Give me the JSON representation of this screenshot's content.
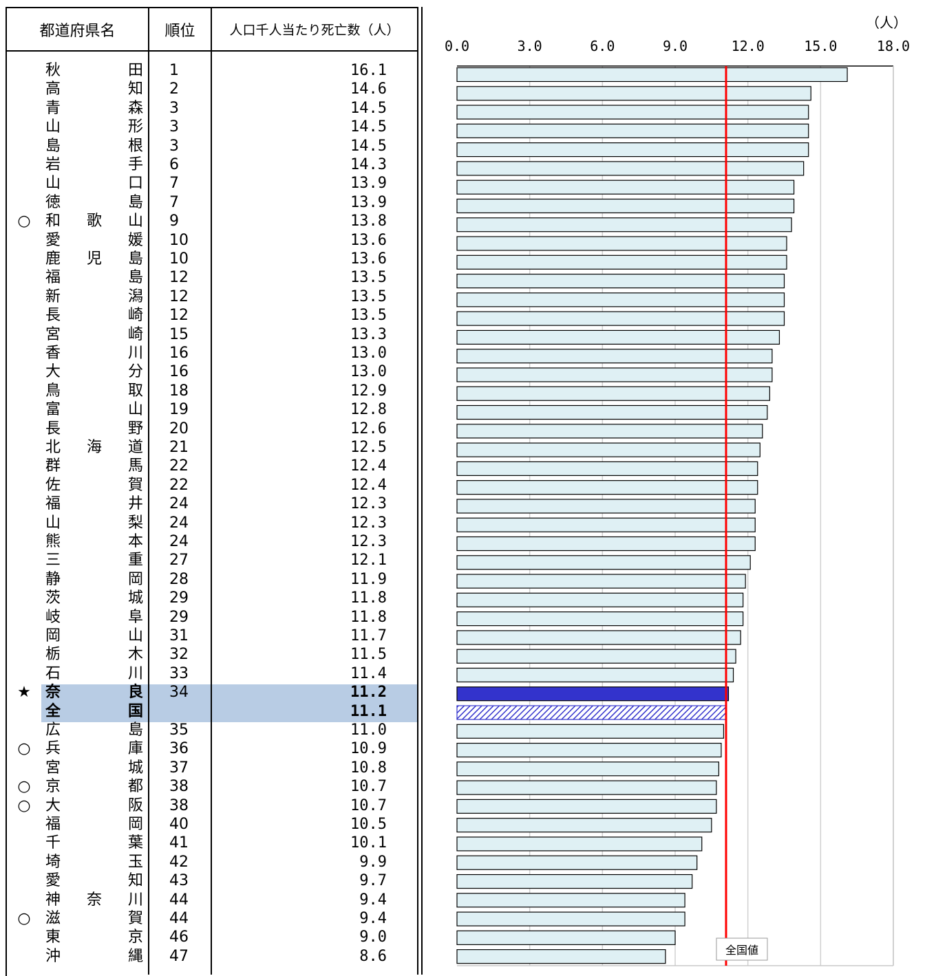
{
  "table": {
    "header": {
      "name": "都道府県名",
      "rank": "順位",
      "value": "人口千人当たり死亡数（人）"
    },
    "rows": [
      {
        "mark": "",
        "c1": "秋",
        "c2": "",
        "c3": "田",
        "rank": "1",
        "value": "16.1"
      },
      {
        "mark": "",
        "c1": "高",
        "c2": "",
        "c3": "知",
        "rank": "2",
        "value": "14.6"
      },
      {
        "mark": "",
        "c1": "青",
        "c2": "",
        "c3": "森",
        "rank": "3",
        "value": "14.5"
      },
      {
        "mark": "",
        "c1": "山",
        "c2": "",
        "c3": "形",
        "rank": "3",
        "value": "14.5"
      },
      {
        "mark": "",
        "c1": "島",
        "c2": "",
        "c3": "根",
        "rank": "3",
        "value": "14.5"
      },
      {
        "mark": "",
        "c1": "岩",
        "c2": "",
        "c3": "手",
        "rank": "6",
        "value": "14.3"
      },
      {
        "mark": "",
        "c1": "山",
        "c2": "",
        "c3": "口",
        "rank": "7",
        "value": "13.9"
      },
      {
        "mark": "",
        "c1": "徳",
        "c2": "",
        "c3": "島",
        "rank": "7",
        "value": "13.9"
      },
      {
        "mark": "○",
        "c1": "和",
        "c2": "歌",
        "c3": "山",
        "rank": "9",
        "value": "13.8"
      },
      {
        "mark": "",
        "c1": "愛",
        "c2": "",
        "c3": "媛",
        "rank": "10",
        "value": "13.6"
      },
      {
        "mark": "",
        "c1": "鹿",
        "c2": "児",
        "c3": "島",
        "rank": "10",
        "value": "13.6"
      },
      {
        "mark": "",
        "c1": "福",
        "c2": "",
        "c3": "島",
        "rank": "12",
        "value": "13.5"
      },
      {
        "mark": "",
        "c1": "新",
        "c2": "",
        "c3": "潟",
        "rank": "12",
        "value": "13.5"
      },
      {
        "mark": "",
        "c1": "長",
        "c2": "",
        "c3": "崎",
        "rank": "12",
        "value": "13.5"
      },
      {
        "mark": "",
        "c1": "宮",
        "c2": "",
        "c3": "崎",
        "rank": "15",
        "value": "13.3"
      },
      {
        "mark": "",
        "c1": "香",
        "c2": "",
        "c3": "川",
        "rank": "16",
        "value": "13.0"
      },
      {
        "mark": "",
        "c1": "大",
        "c2": "",
        "c3": "分",
        "rank": "16",
        "value": "13.0"
      },
      {
        "mark": "",
        "c1": "鳥",
        "c2": "",
        "c3": "取",
        "rank": "18",
        "value": "12.9"
      },
      {
        "mark": "",
        "c1": "富",
        "c2": "",
        "c3": "山",
        "rank": "19",
        "value": "12.8"
      },
      {
        "mark": "",
        "c1": "長",
        "c2": "",
        "c3": "野",
        "rank": "20",
        "value": "12.6"
      },
      {
        "mark": "",
        "c1": "北",
        "c2": "海",
        "c3": "道",
        "rank": "21",
        "value": "12.5"
      },
      {
        "mark": "",
        "c1": "群",
        "c2": "",
        "c3": "馬",
        "rank": "22",
        "value": "12.4"
      },
      {
        "mark": "",
        "c1": "佐",
        "c2": "",
        "c3": "賀",
        "rank": "22",
        "value": "12.4"
      },
      {
        "mark": "",
        "c1": "福",
        "c2": "",
        "c3": "井",
        "rank": "24",
        "value": "12.3"
      },
      {
        "mark": "",
        "c1": "山",
        "c2": "",
        "c3": "梨",
        "rank": "24",
        "value": "12.3"
      },
      {
        "mark": "",
        "c1": "熊",
        "c2": "",
        "c3": "本",
        "rank": "24",
        "value": "12.3"
      },
      {
        "mark": "",
        "c1": "三",
        "c2": "",
        "c3": "重",
        "rank": "27",
        "value": "12.1"
      },
      {
        "mark": "",
        "c1": "静",
        "c2": "",
        "c3": "岡",
        "rank": "28",
        "value": "11.9"
      },
      {
        "mark": "",
        "c1": "茨",
        "c2": "",
        "c3": "城",
        "rank": "29",
        "value": "11.8"
      },
      {
        "mark": "",
        "c1": "岐",
        "c2": "",
        "c3": "阜",
        "rank": "29",
        "value": "11.8"
      },
      {
        "mark": "",
        "c1": "岡",
        "c2": "",
        "c3": "山",
        "rank": "31",
        "value": "11.7"
      },
      {
        "mark": "",
        "c1": "栃",
        "c2": "",
        "c3": "木",
        "rank": "32",
        "value": "11.5"
      },
      {
        "mark": "",
        "c1": "石",
        "c2": "",
        "c3": "川",
        "rank": "33",
        "value": "11.4"
      },
      {
        "mark": "★",
        "c1": "奈",
        "c2": "",
        "c3": "良",
        "rank": "34",
        "value": "11.2",
        "highlight": true,
        "bold": true
      },
      {
        "mark": "",
        "c1": "全",
        "c2": "",
        "c3": "国",
        "rank": "",
        "value": "11.1",
        "highlight": true,
        "bold": true
      },
      {
        "mark": "",
        "c1": "広",
        "c2": "",
        "c3": "島",
        "rank": "35",
        "value": "11.0"
      },
      {
        "mark": "○",
        "c1": "兵",
        "c2": "",
        "c3": "庫",
        "rank": "36",
        "value": "10.9"
      },
      {
        "mark": "",
        "c1": "宮",
        "c2": "",
        "c3": "城",
        "rank": "37",
        "value": "10.8"
      },
      {
        "mark": "○",
        "c1": "京",
        "c2": "",
        "c3": "都",
        "rank": "38",
        "value": "10.7"
      },
      {
        "mark": "○",
        "c1": "大",
        "c2": "",
        "c3": "阪",
        "rank": "38",
        "value": "10.7"
      },
      {
        "mark": "",
        "c1": "福",
        "c2": "",
        "c3": "岡",
        "rank": "40",
        "value": "10.5"
      },
      {
        "mark": "",
        "c1": "千",
        "c2": "",
        "c3": "葉",
        "rank": "41",
        "value": "10.1"
      },
      {
        "mark": "",
        "c1": "埼",
        "c2": "",
        "c3": "玉",
        "rank": "42",
        "value": "9.9"
      },
      {
        "mark": "",
        "c1": "愛",
        "c2": "",
        "c3": "知",
        "rank": "43",
        "value": "9.7"
      },
      {
        "mark": "",
        "c1": "神",
        "c2": "奈",
        "c3": "川",
        "rank": "44",
        "value": "9.4"
      },
      {
        "mark": "○",
        "c1": "滋",
        "c2": "",
        "c3": "賀",
        "rank": "44",
        "value": "9.4"
      },
      {
        "mark": "",
        "c1": "東",
        "c2": "",
        "c3": "京",
        "rank": "46",
        "value": "9.0"
      },
      {
        "mark": "",
        "c1": "沖",
        "c2": "",
        "c3": "縄",
        "rank": "47",
        "value": "8.6"
      }
    ]
  },
  "chart_data": {
    "type": "bar",
    "orientation": "horizontal",
    "unit": "（人）",
    "xlim": [
      0,
      18
    ],
    "ticks": [
      "0.0",
      "3.0",
      "6.0",
      "9.0",
      "12.0",
      "15.0",
      "18.0"
    ],
    "values": [
      16.1,
      14.6,
      14.5,
      14.5,
      14.5,
      14.3,
      13.9,
      13.9,
      13.8,
      13.6,
      13.6,
      13.5,
      13.5,
      13.5,
      13.3,
      13.0,
      13.0,
      12.9,
      12.8,
      12.6,
      12.5,
      12.4,
      12.4,
      12.3,
      12.3,
      12.3,
      12.1,
      11.9,
      11.8,
      11.8,
      11.7,
      11.5,
      11.4,
      11.2,
      11.1,
      11.0,
      10.9,
      10.8,
      10.7,
      10.7,
      10.5,
      10.1,
      9.9,
      9.7,
      9.4,
      9.4,
      9.0,
      8.6
    ],
    "national_index": 34,
    "nara_index": 33,
    "national_value": 11.1,
    "reference_label": "全国値",
    "grid": true,
    "colors": {
      "bar": "#dff0f4",
      "nara": "#3333cc",
      "national": "#3333cc",
      "line": "#ff0000"
    }
  }
}
